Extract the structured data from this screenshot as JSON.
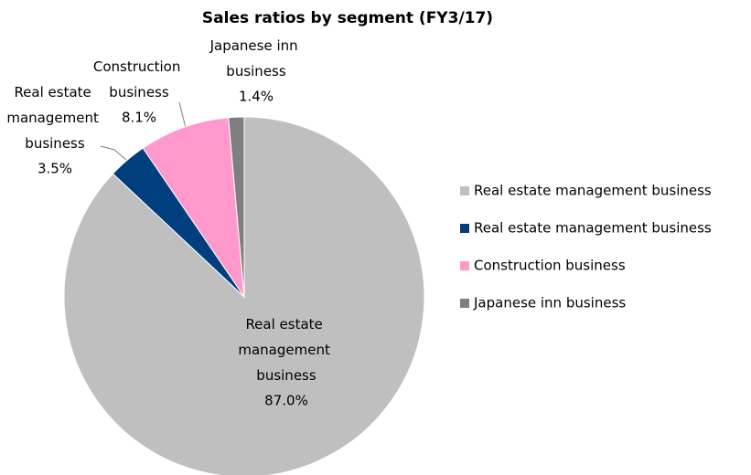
{
  "chart_data": {
    "type": "pie",
    "title": "Sales ratios by segment (FY3/17)",
    "categories": [
      "Real estate management business",
      "Real estate management business",
      "Construction business",
      "Japanese inn business"
    ],
    "values": [
      87.0,
      3.5,
      8.1,
      1.4
    ],
    "value_labels": [
      "87.0%",
      "3.5%",
      "8.1%",
      "1.4%"
    ],
    "colors": [
      "#bfbfbf",
      "#003e7e",
      "#ff99cc",
      "#7f7f7f"
    ],
    "legend": "right"
  }
}
